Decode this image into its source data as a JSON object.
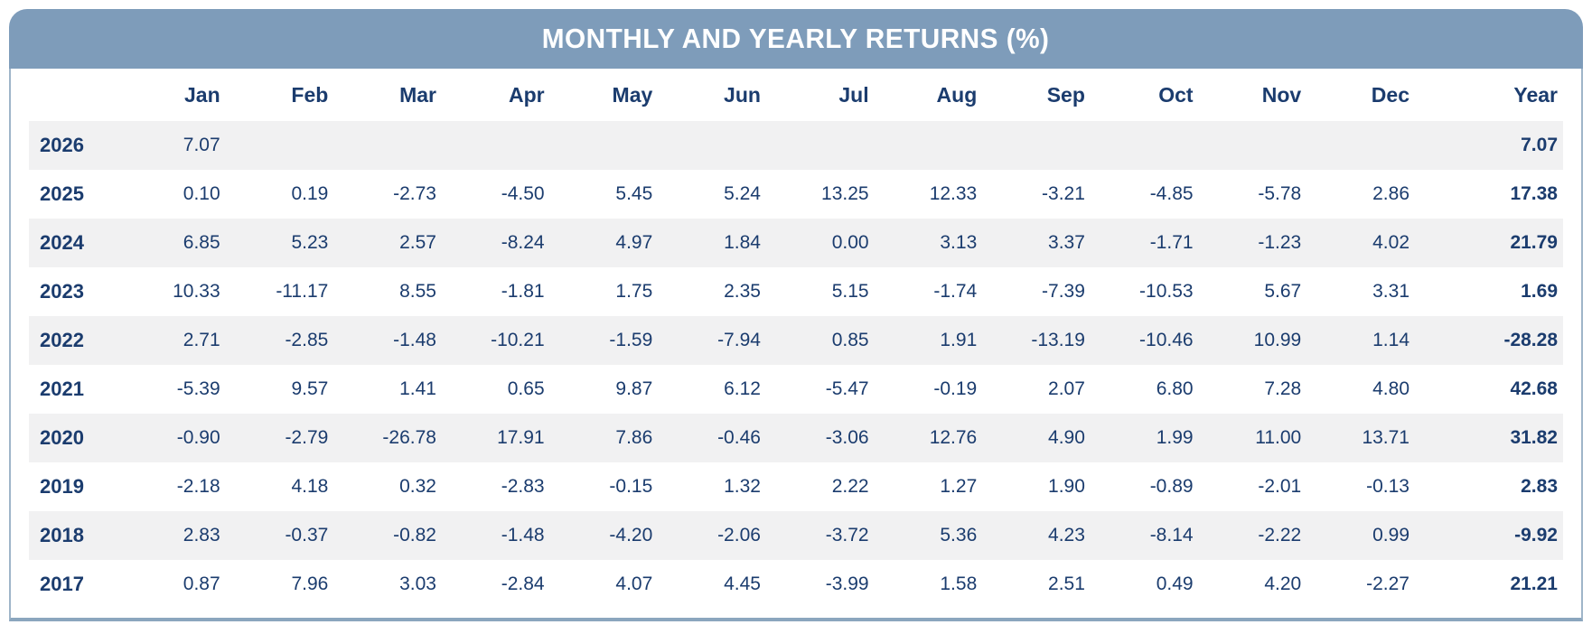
{
  "title": "MONTHLY AND YEARLY RETURNS (%)",
  "colors": {
    "header_bg": "#7E9CBA",
    "header_text": "#FFFFFF",
    "cell_text": "#1B3C6E",
    "stripe_row_bg": "#F1F1F2",
    "side_border": "#9FB5C9",
    "bottom_border": "#8BA6BE",
    "page_bg": "#FFFFFF"
  },
  "chart_data": {
    "type": "table",
    "title": "MONTHLY AND YEARLY RETURNS (%)",
    "columns": [
      "",
      "Jan",
      "Feb",
      "Mar",
      "Apr",
      "May",
      "Jun",
      "Jul",
      "Aug",
      "Sep",
      "Oct",
      "Nov",
      "Dec",
      "Year"
    ],
    "rows": [
      {
        "year": "2026",
        "monthly": [
          "7.07",
          "",
          "",
          "",
          "",
          "",
          "",
          "",
          "",
          "",
          "",
          ""
        ],
        "year_total": "7.07"
      },
      {
        "year": "2025",
        "monthly": [
          "0.10",
          "0.19",
          "-2.73",
          "-4.50",
          "5.45",
          "5.24",
          "13.25",
          "12.33",
          "-3.21",
          "-4.85",
          "-5.78",
          "2.86"
        ],
        "year_total": "17.38"
      },
      {
        "year": "2024",
        "monthly": [
          "6.85",
          "5.23",
          "2.57",
          "-8.24",
          "4.97",
          "1.84",
          "0.00",
          "3.13",
          "3.37",
          "-1.71",
          "-1.23",
          "4.02"
        ],
        "year_total": "21.79"
      },
      {
        "year": "2023",
        "monthly": [
          "10.33",
          "-11.17",
          "8.55",
          "-1.81",
          "1.75",
          "2.35",
          "5.15",
          "-1.74",
          "-7.39",
          "-10.53",
          "5.67",
          "3.31"
        ],
        "year_total": "1.69"
      },
      {
        "year": "2022",
        "monthly": [
          "2.71",
          "-2.85",
          "-1.48",
          "-10.21",
          "-1.59",
          "-7.94",
          "0.85",
          "1.91",
          "-13.19",
          "-10.46",
          "10.99",
          "1.14"
        ],
        "year_total": "-28.28"
      },
      {
        "year": "2021",
        "monthly": [
          "-5.39",
          "9.57",
          "1.41",
          "0.65",
          "9.87",
          "6.12",
          "-5.47",
          "-0.19",
          "2.07",
          "6.80",
          "7.28",
          "4.80"
        ],
        "year_total": "42.68"
      },
      {
        "year": "2020",
        "monthly": [
          "-0.90",
          "-2.79",
          "-26.78",
          "17.91",
          "7.86",
          "-0.46",
          "-3.06",
          "12.76",
          "4.90",
          "1.99",
          "11.00",
          "13.71"
        ],
        "year_total": "31.82"
      },
      {
        "year": "2019",
        "monthly": [
          "-2.18",
          "4.18",
          "0.32",
          "-2.83",
          "-0.15",
          "1.32",
          "2.22",
          "1.27",
          "1.90",
          "-0.89",
          "-2.01",
          "-0.13"
        ],
        "year_total": "2.83"
      },
      {
        "year": "2018",
        "monthly": [
          "2.83",
          "-0.37",
          "-0.82",
          "-1.48",
          "-4.20",
          "-2.06",
          "-3.72",
          "5.36",
          "4.23",
          "-8.14",
          "-2.22",
          "0.99"
        ],
        "year_total": "-9.92"
      },
      {
        "year": "2017",
        "monthly": [
          "0.87",
          "7.96",
          "3.03",
          "-2.84",
          "4.07",
          "4.45",
          "-3.99",
          "1.58",
          "2.51",
          "0.49",
          "4.20",
          "-2.27"
        ],
        "year_total": "21.21"
      }
    ]
  }
}
